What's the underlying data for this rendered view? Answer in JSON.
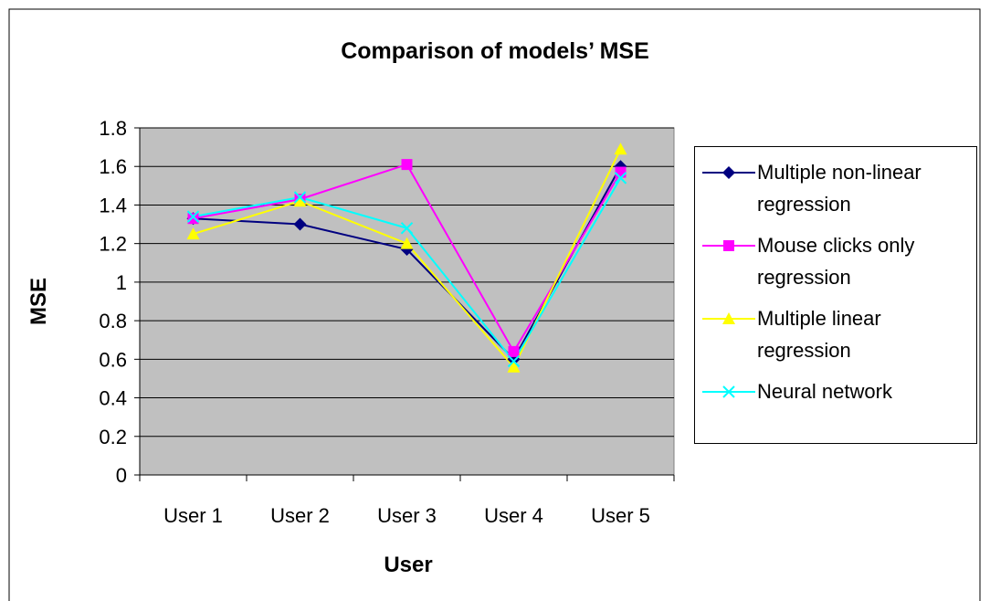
{
  "chart_data": {
    "type": "line",
    "title": "Comparison of models’ MSE",
    "x_label": "User",
    "y_label": "MSE",
    "categories": [
      "User 1",
      "User 2",
      "User 3",
      "User 4",
      "User 5"
    ],
    "series": [
      {
        "name": "Multiple non-linear regression",
        "color": "#000080",
        "marker": "diamond",
        "values": [
          1.33,
          1.3,
          1.17,
          0.6,
          1.6
        ]
      },
      {
        "name": "Mouse clicks only regression",
        "color": "#ff00ff",
        "marker": "square",
        "values": [
          1.33,
          1.43,
          1.61,
          0.64,
          1.57
        ]
      },
      {
        "name": "Multiple linear regression",
        "color": "#ffff00",
        "marker": "triangle",
        "values": [
          1.25,
          1.42,
          1.2,
          0.56,
          1.69
        ]
      },
      {
        "name": "Neural network",
        "color": "#00ffff",
        "marker": "x",
        "values": [
          1.34,
          1.44,
          1.28,
          0.59,
          1.54
        ]
      }
    ],
    "ylim": [
      0,
      1.8
    ],
    "yticks": [
      0,
      0.2,
      0.4,
      0.6,
      0.8,
      1,
      1.2,
      1.4,
      1.6,
      1.8
    ],
    "grid": true,
    "legend": "right"
  }
}
